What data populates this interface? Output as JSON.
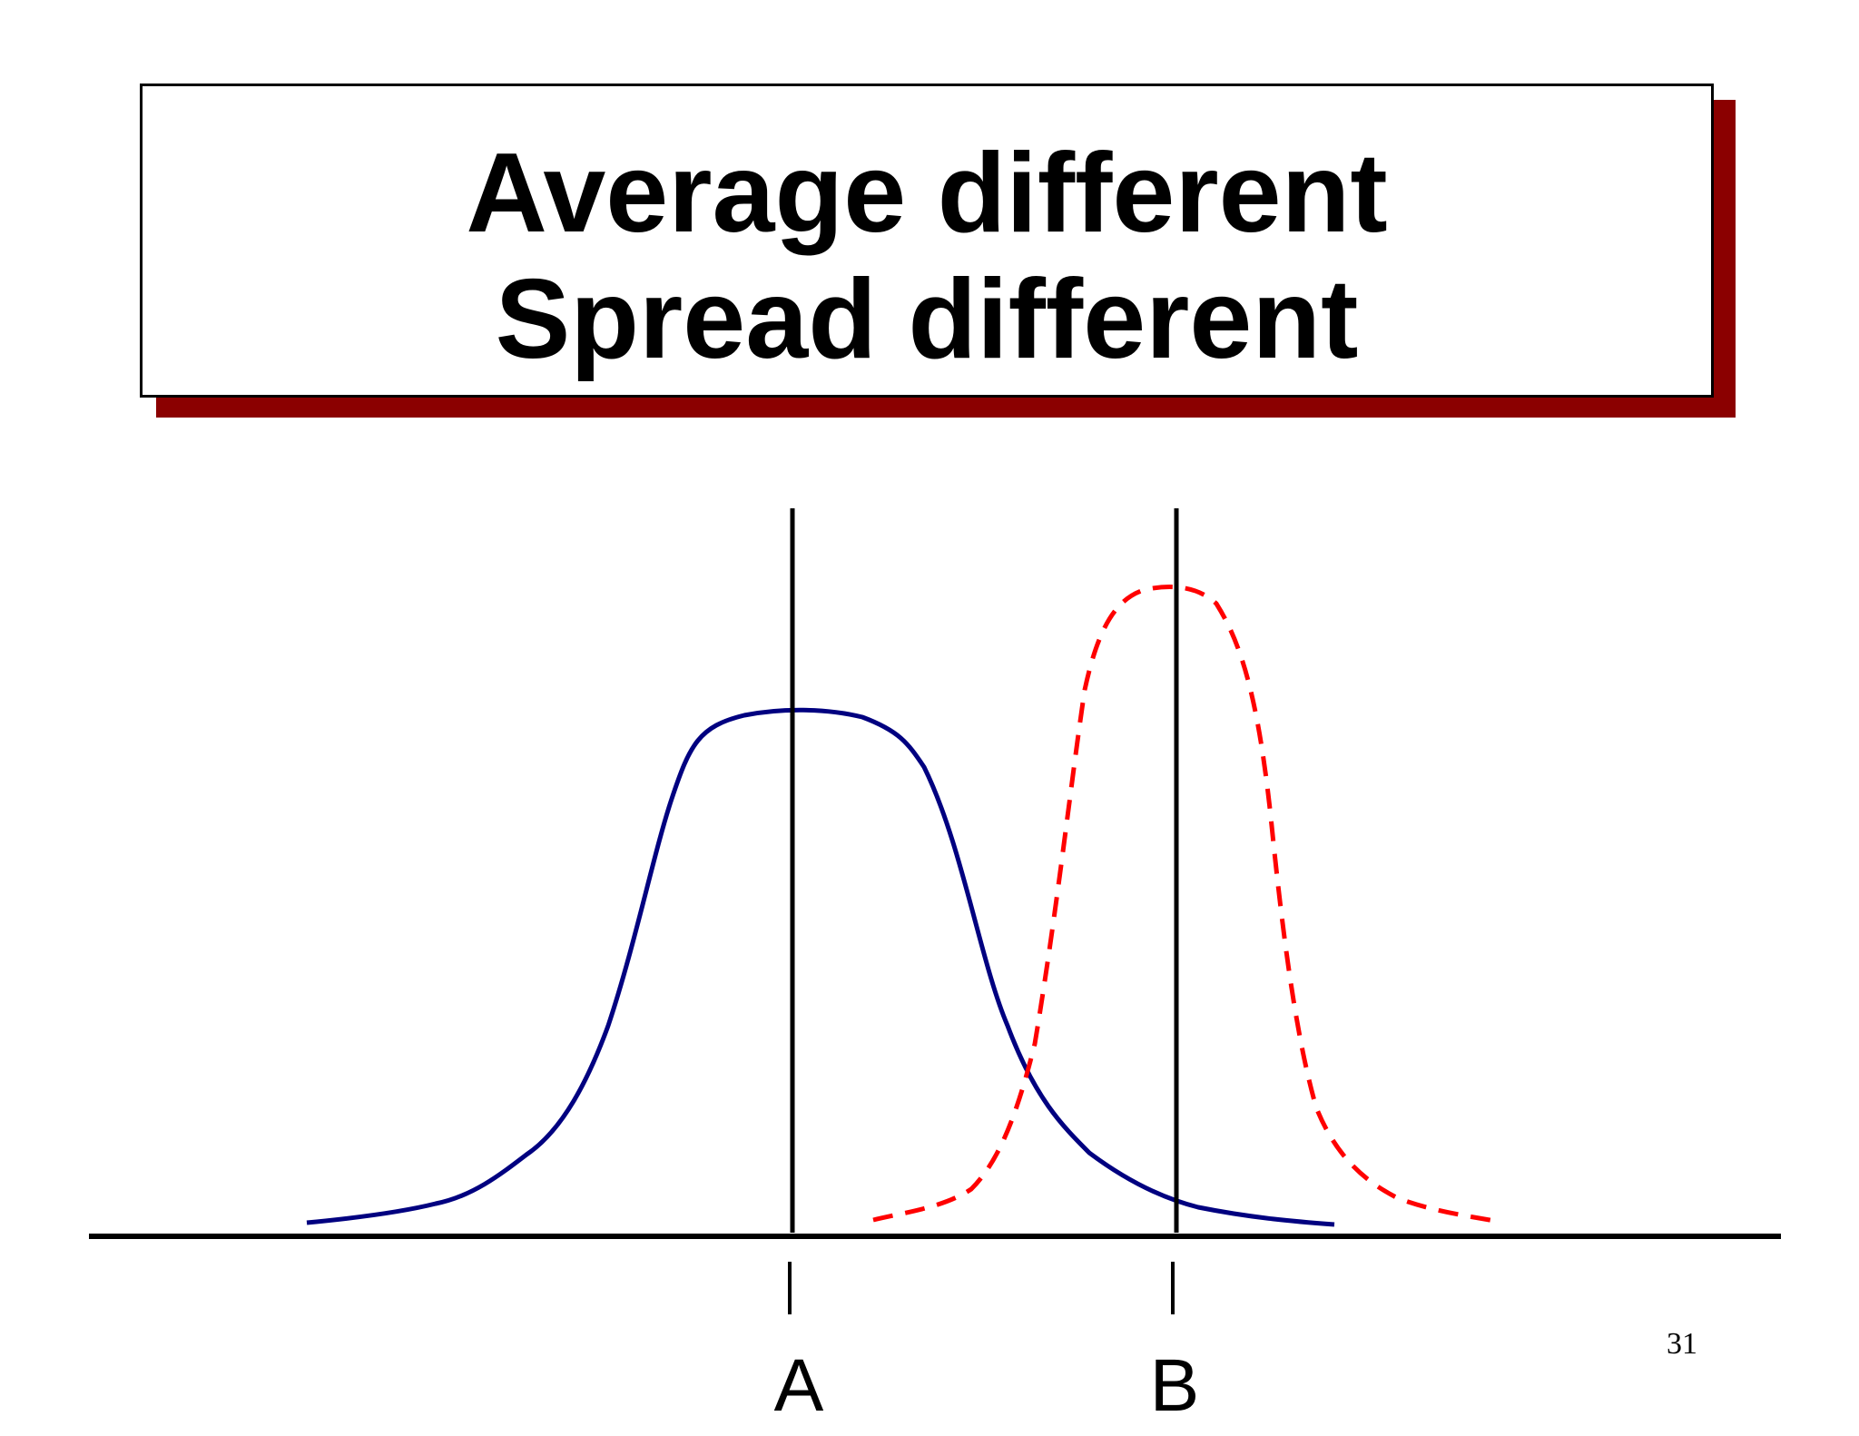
{
  "slide": {
    "title_line_1": "Average different",
    "title_line_2": "Spread different",
    "page_number": "31"
  },
  "diagram": {
    "label_a": "A",
    "label_b": "B",
    "colors": {
      "curve_a": "#000080",
      "curve_b": "#ff0000",
      "title_shadow": "#8b0000",
      "lines": "#000000"
    }
  }
}
